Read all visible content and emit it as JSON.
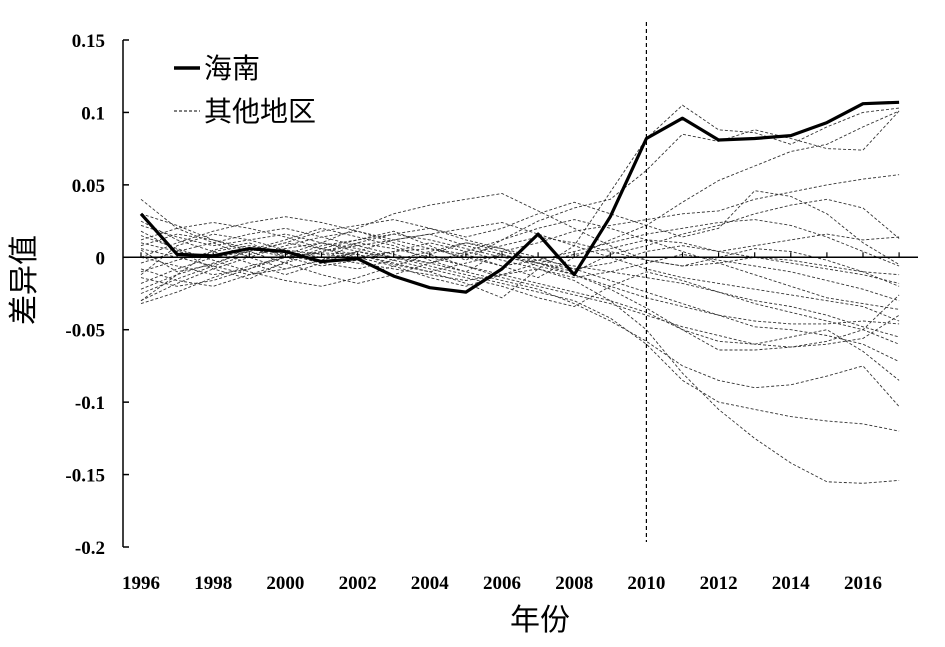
{
  "chart_data": {
    "type": "line",
    "xlabel": "年份",
    "ylabel": "差异值",
    "xlim": [
      1996,
      2017
    ],
    "ylim": [
      -0.2,
      0.15
    ],
    "x_ticks": [
      "1996",
      "1998",
      "2000",
      "2002",
      "2004",
      "2006",
      "2008",
      "2010",
      "2012",
      "2014",
      "2016"
    ],
    "y_ticks": [
      "0.15",
      "0.1",
      "0.05",
      "0",
      "-0.05",
      "-0.1",
      "-0.15",
      "-0.2"
    ],
    "reference_line_x": 2010,
    "x": [
      1996,
      1997,
      1998,
      1999,
      2000,
      2001,
      2002,
      2003,
      2004,
      2005,
      2006,
      2007,
      2008,
      2009,
      2010,
      2011,
      2012,
      2013,
      2014,
      2015,
      2016,
      2017
    ],
    "legend": [
      {
        "label": "海南",
        "style": "solid"
      },
      {
        "label": "其他地区",
        "style": "dashed"
      }
    ],
    "hainan": {
      "name": "海南",
      "values": [
        0.03,
        0.002,
        0.001,
        0.006,
        0.004,
        -0.003,
        -0.001,
        -0.013,
        -0.021,
        -0.024,
        -0.008,
        0.016,
        -0.012,
        0.028,
        0.082,
        0.096,
        0.081,
        0.082,
        0.084,
        0.093,
        0.106,
        0.107
      ]
    },
    "others": [
      {
        "values": [
          -0.03,
          -0.012,
          0.005,
          0.01,
          0.0,
          0.003,
          0.002,
          -0.005,
          -0.01,
          -0.018,
          -0.028,
          -0.008,
          0.008,
          0.045,
          0.082,
          0.105,
          0.088,
          0.086,
          0.078,
          0.09,
          0.1,
          0.103
        ]
      },
      {
        "values": [
          0.018,
          0.005,
          -0.008,
          -0.015,
          -0.003,
          0.006,
          0.012,
          0.018,
          0.008,
          -0.002,
          0.012,
          0.025,
          0.034,
          0.04,
          0.06,
          0.085,
          0.08,
          0.088,
          0.082,
          0.075,
          0.074,
          0.101
        ]
      },
      {
        "values": [
          -0.012,
          0.008,
          0.016,
          0.012,
          0.005,
          0.002,
          0.0,
          0.004,
          0.006,
          0.002,
          -0.006,
          -0.014,
          0.0,
          0.012,
          0.022,
          0.038,
          0.053,
          0.063,
          0.073,
          0.078,
          0.09,
          0.101
        ]
      },
      {
        "values": [
          0.005,
          -0.01,
          -0.005,
          0.005,
          0.012,
          0.02,
          0.014,
          0.008,
          -0.002,
          -0.01,
          0.004,
          0.01,
          0.018,
          0.022,
          0.026,
          0.03,
          0.032,
          0.04,
          0.045,
          0.05,
          0.054,
          0.057
        ]
      },
      {
        "values": [
          0.04,
          0.02,
          0.01,
          0.0,
          -0.008,
          -0.002,
          0.01,
          0.016,
          0.02,
          0.012,
          0.006,
          -0.004,
          -0.01,
          0.002,
          0.008,
          0.016,
          0.022,
          0.03,
          0.036,
          0.04,
          0.034,
          0.013
        ]
      },
      {
        "values": [
          -0.022,
          -0.012,
          -0.004,
          0.004,
          0.01,
          0.018,
          0.022,
          0.026,
          0.02,
          0.014,
          0.02,
          0.03,
          0.038,
          0.03,
          0.022,
          0.014,
          0.02,
          0.046,
          0.042,
          0.03,
          0.01,
          -0.005
        ]
      },
      {
        "values": [
          0.012,
          0.02,
          0.024,
          0.02,
          0.014,
          0.006,
          0.0,
          -0.006,
          -0.014,
          -0.02,
          -0.012,
          -0.004,
          0.002,
          0.006,
          0.012,
          0.01,
          0.004,
          0.008,
          0.012,
          0.016,
          0.012,
          0.014
        ]
      },
      {
        "values": [
          0.0,
          -0.006,
          -0.012,
          -0.008,
          0.002,
          0.01,
          0.02,
          0.03,
          0.036,
          0.04,
          0.044,
          0.032,
          0.02,
          0.008,
          -0.002,
          -0.006,
          0.0,
          0.006,
          0.004,
          -0.002,
          -0.01,
          -0.02
        ]
      },
      {
        "values": [
          -0.018,
          -0.008,
          0.0,
          0.006,
          0.002,
          -0.004,
          -0.008,
          -0.002,
          0.004,
          0.01,
          0.004,
          -0.002,
          -0.006,
          -0.01,
          -0.014,
          -0.018,
          -0.024,
          -0.03,
          -0.034,
          -0.04,
          -0.048,
          -0.055
        ]
      },
      {
        "values": [
          0.025,
          0.012,
          0.004,
          -0.004,
          -0.012,
          -0.004,
          0.004,
          0.012,
          0.016,
          0.008,
          0.002,
          -0.006,
          -0.012,
          -0.02,
          -0.028,
          -0.034,
          -0.04,
          -0.044,
          -0.046,
          -0.046,
          -0.044,
          -0.046
        ]
      },
      {
        "values": [
          -0.03,
          -0.018,
          -0.008,
          0.0,
          0.008,
          0.014,
          0.018,
          0.01,
          0.002,
          -0.006,
          -0.014,
          -0.02,
          -0.026,
          -0.032,
          -0.04,
          -0.048,
          -0.054,
          -0.06,
          -0.062,
          -0.06,
          -0.056,
          -0.04
        ]
      },
      {
        "values": [
          0.015,
          0.006,
          -0.002,
          -0.01,
          -0.016,
          -0.02,
          -0.014,
          -0.006,
          0.002,
          0.01,
          0.006,
          0.0,
          -0.008,
          -0.016,
          -0.024,
          -0.032,
          -0.04,
          -0.048,
          -0.05,
          -0.054,
          -0.06,
          -0.072
        ]
      },
      {
        "values": [
          -0.008,
          -0.016,
          -0.02,
          -0.012,
          -0.004,
          0.004,
          0.01,
          0.006,
          0.0,
          -0.006,
          -0.012,
          -0.018,
          -0.024,
          -0.03,
          -0.038,
          -0.05,
          -0.064,
          -0.064,
          -0.062,
          -0.058,
          -0.05,
          -0.026
        ]
      },
      {
        "values": [
          0.01,
          0.004,
          0.0,
          0.004,
          0.01,
          0.006,
          0.002,
          -0.004,
          -0.01,
          -0.004,
          0.002,
          -0.004,
          -0.012,
          -0.022,
          -0.035,
          -0.05,
          -0.058,
          -0.06,
          -0.055,
          -0.05,
          -0.065,
          -0.085
        ]
      },
      {
        "values": [
          -0.004,
          0.004,
          0.01,
          0.016,
          0.02,
          0.014,
          0.008,
          0.002,
          -0.004,
          -0.01,
          -0.016,
          -0.022,
          -0.032,
          -0.044,
          -0.058,
          -0.075,
          -0.085,
          -0.09,
          -0.088,
          -0.082,
          -0.075,
          -0.103
        ]
      },
      {
        "values": [
          0.006,
          0.0,
          -0.006,
          -0.012,
          -0.008,
          -0.002,
          0.004,
          0.0,
          -0.006,
          -0.012,
          -0.018,
          -0.024,
          -0.03,
          -0.042,
          -0.06,
          -0.085,
          -0.1,
          -0.105,
          -0.11,
          -0.113,
          -0.115,
          -0.12
        ]
      },
      {
        "values": [
          -0.01,
          -0.002,
          0.004,
          0.008,
          0.004,
          0.0,
          -0.004,
          -0.008,
          -0.012,
          -0.016,
          -0.012,
          -0.008,
          -0.016,
          -0.03,
          -0.05,
          -0.08,
          -0.105,
          -0.125,
          -0.142,
          -0.155,
          -0.156,
          -0.154
        ]
      },
      {
        "values": [
          0.03,
          0.022,
          0.012,
          0.006,
          0.0,
          -0.006,
          -0.002,
          0.004,
          0.01,
          0.004,
          -0.002,
          -0.008,
          -0.014,
          -0.01,
          -0.004,
          0.002,
          -0.002,
          -0.006,
          -0.01,
          -0.016,
          -0.022,
          -0.03
        ]
      },
      {
        "values": [
          -0.025,
          -0.015,
          -0.006,
          0.002,
          0.006,
          0.01,
          0.006,
          0.0,
          -0.004,
          0.002,
          0.008,
          0.014,
          0.01,
          0.004,
          -0.002,
          -0.006,
          -0.004,
          0.0,
          -0.002,
          -0.006,
          -0.01,
          -0.012
        ]
      },
      {
        "values": [
          0.0,
          0.01,
          0.018,
          0.024,
          0.028,
          0.024,
          0.018,
          0.012,
          0.006,
          0.0,
          -0.006,
          -0.002,
          0.004,
          0.01,
          0.016,
          0.02,
          0.024,
          0.026,
          0.022,
          0.014,
          0.004,
          -0.006
        ]
      },
      {
        "values": [
          0.022,
          0.014,
          0.008,
          0.012,
          0.016,
          0.01,
          0.004,
          -0.002,
          -0.008,
          -0.014,
          -0.02,
          -0.028,
          -0.034,
          -0.02,
          -0.01,
          -0.016,
          -0.024,
          -0.032,
          -0.038,
          -0.044,
          -0.05,
          -0.06
        ]
      },
      {
        "values": [
          -0.014,
          -0.02,
          -0.016,
          -0.008,
          0.0,
          0.008,
          0.012,
          0.016,
          0.012,
          0.006,
          0.0,
          -0.004,
          -0.008,
          -0.004,
          0.004,
          0.008,
          0.004,
          0.0,
          -0.004,
          -0.008,
          -0.012,
          -0.018
        ]
      },
      {
        "values": [
          0.008,
          0.016,
          0.012,
          0.004,
          -0.004,
          -0.012,
          -0.018,
          -0.012,
          -0.004,
          0.004,
          0.012,
          0.02,
          0.026,
          0.02,
          0.012,
          0.004,
          -0.004,
          -0.012,
          -0.02,
          -0.028,
          -0.032,
          -0.036
        ]
      },
      {
        "values": [
          -0.032,
          -0.024,
          -0.014,
          -0.006,
          0.0,
          0.004,
          0.008,
          0.012,
          0.016,
          0.02,
          0.024,
          0.016,
          0.008,
          0.0,
          -0.008,
          -0.014,
          -0.018,
          -0.022,
          -0.026,
          -0.03,
          -0.034,
          -0.044
        ]
      }
    ]
  }
}
